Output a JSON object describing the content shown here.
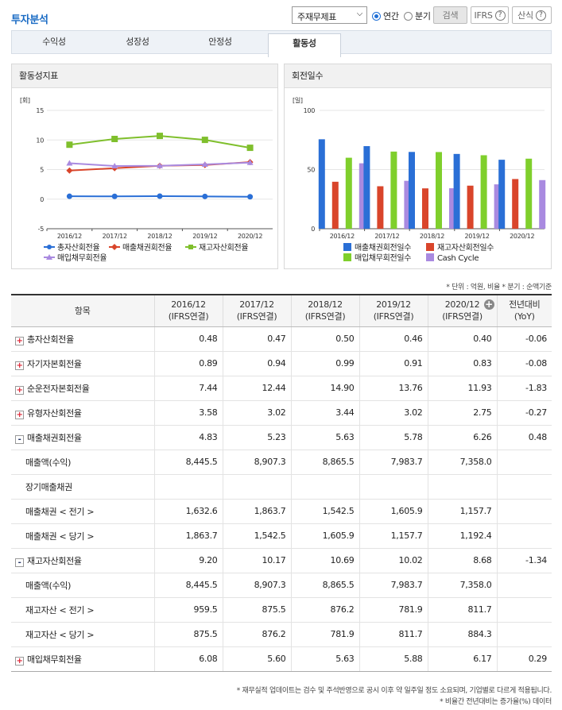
{
  "header": {
    "title": "투자분석",
    "select_value": "주재무제표",
    "radio_annual": "연간",
    "radio_quarter": "분기",
    "search_button": "검색",
    "ifrs_button": "IFRS",
    "formula_button": "산식",
    "help_icon": "?"
  },
  "tabs": [
    {
      "label": "수익성"
    },
    {
      "label": "성장성"
    },
    {
      "label": "안정성"
    },
    {
      "label": "활동성"
    }
  ],
  "left_chart": {
    "panel_title": "활동성지표",
    "unit": "[회]",
    "chart_data": {
      "type": "line",
      "x": [
        "2016/12",
        "2017/12",
        "2018/12",
        "2019/12",
        "2020/12"
      ],
      "ylim": [
        -5,
        15
      ],
      "yticks": [
        -5,
        0,
        5,
        10,
        15
      ],
      "series": [
        {
          "name": "총자산회전율",
          "color": "#2a6fd6",
          "marker": "circle",
          "values": [
            0.48,
            0.47,
            0.5,
            0.46,
            0.4
          ]
        },
        {
          "name": "매출채권회전율",
          "color": "#d9452b",
          "marker": "diamond",
          "values": [
            4.83,
            5.23,
            5.63,
            5.78,
            6.26
          ]
        },
        {
          "name": "재고자산회전율",
          "color": "#7fbf2c",
          "marker": "square",
          "values": [
            9.2,
            10.17,
            10.69,
            10.02,
            8.68
          ]
        },
        {
          "name": "매입채무회전율",
          "color": "#a98ae0",
          "marker": "triangle",
          "values": [
            6.08,
            5.6,
            5.63,
            5.88,
            6.17
          ]
        }
      ]
    }
  },
  "right_chart": {
    "panel_title": "회전일수",
    "unit": "[일]",
    "chart_data": {
      "type": "bar",
      "categories": [
        "2016/12",
        "2017/12",
        "2018/12",
        "2019/12",
        "2020/12"
      ],
      "ylim": [
        0,
        100
      ],
      "yticks": [
        0,
        50,
        100
      ],
      "series": [
        {
          "name": "매출채권회전일수",
          "color": "#2a6fd6",
          "values": [
            75.6,
            69.8,
            64.9,
            63.2,
            58.3
          ]
        },
        {
          "name": "재고자산회전일수",
          "color": "#d9452b",
          "values": [
            39.7,
            35.9,
            34.1,
            36.4,
            42.0
          ]
        },
        {
          "name": "매입채무회전일수",
          "color": "#7fcf2c",
          "values": [
            60.0,
            65.2,
            64.8,
            62.1,
            59.2
          ]
        },
        {
          "name": "Cash Cycle",
          "color": "#a98ae0",
          "values": [
            55.3,
            40.5,
            34.2,
            37.5,
            41.1
          ]
        }
      ]
    }
  },
  "notes": {
    "unit_note": "* 단위 : 억원, 비율   * 분기 : 순액기준",
    "footer_1": "* 재무실적 업데이트는 검수 및 주석반영으로 공시 이후 약 일주일 정도 소요되며, 기업별로 다르게 적용됩니다.",
    "footer_2": "* 비율간 전년대비는 증가율(%) 데이터"
  },
  "table": {
    "headers": [
      "항목",
      "2016/12\n(IFRS연결)",
      "2017/12\n(IFRS연결)",
      "2018/12\n(IFRS연결)",
      "2019/12\n(IFRS연결)",
      "2020/12\n(IFRS연결)",
      "전년대비\n(YoY)"
    ],
    "rows": [
      {
        "label": "총자산회전율",
        "toggle": "+",
        "values": [
          "0.48",
          "0.47",
          "0.50",
          "0.46",
          "0.40"
        ],
        "yoy": "-0.06"
      },
      {
        "label": "자기자본회전율",
        "toggle": "+",
        "values": [
          "0.89",
          "0.94",
          "0.99",
          "0.91",
          "0.83"
        ],
        "yoy": "-0.08"
      },
      {
        "label": "순운전자본회전율",
        "toggle": "+",
        "values": [
          "7.44",
          "12.44",
          "14.90",
          "13.76",
          "11.93"
        ],
        "yoy": "-1.83"
      },
      {
        "label": "유형자산회전율",
        "toggle": "+",
        "values": [
          "3.58",
          "3.02",
          "3.44",
          "3.02",
          "2.75"
        ],
        "yoy": "-0.27"
      },
      {
        "label": "매출채권회전율",
        "toggle": "-",
        "values": [
          "4.83",
          "5.23",
          "5.63",
          "5.78",
          "6.26"
        ],
        "yoy": "0.48"
      },
      {
        "label": "매출액(수익)",
        "sub": true,
        "values": [
          "8,445.5",
          "8,907.3",
          "8,865.5",
          "7,983.7",
          "7,358.0"
        ],
        "yoy": ""
      },
      {
        "label": "장기매출채권",
        "sub": true,
        "values": [
          "",
          "",
          "",
          "",
          ""
        ],
        "yoy": ""
      },
      {
        "label": "매출채권 < 전기 >",
        "sub": true,
        "values": [
          "1,632.6",
          "1,863.7",
          "1,542.5",
          "1,605.9",
          "1,157.7"
        ],
        "yoy": ""
      },
      {
        "label": "매출채권 < 당기 >",
        "sub": true,
        "values": [
          "1,863.7",
          "1,542.5",
          "1,605.9",
          "1,157.7",
          "1,192.4"
        ],
        "yoy": ""
      },
      {
        "label": "재고자산회전율",
        "toggle": "-",
        "values": [
          "9.20",
          "10.17",
          "10.69",
          "10.02",
          "8.68"
        ],
        "yoy": "-1.34"
      },
      {
        "label": "매출액(수익)",
        "sub": true,
        "values": [
          "8,445.5",
          "8,907.3",
          "8,865.5",
          "7,983.7",
          "7,358.0"
        ],
        "yoy": ""
      },
      {
        "label": "재고자산 < 전기 >",
        "sub": true,
        "values": [
          "959.5",
          "875.5",
          "876.2",
          "781.9",
          "811.7"
        ],
        "yoy": ""
      },
      {
        "label": "재고자산 < 당기 >",
        "sub": true,
        "values": [
          "875.5",
          "876.2",
          "781.9",
          "811.7",
          "884.3"
        ],
        "yoy": ""
      },
      {
        "label": "매입채무회전율",
        "toggle": "+",
        "values": [
          "6.08",
          "5.60",
          "5.63",
          "5.88",
          "6.17"
        ],
        "yoy": "0.29"
      }
    ]
  }
}
